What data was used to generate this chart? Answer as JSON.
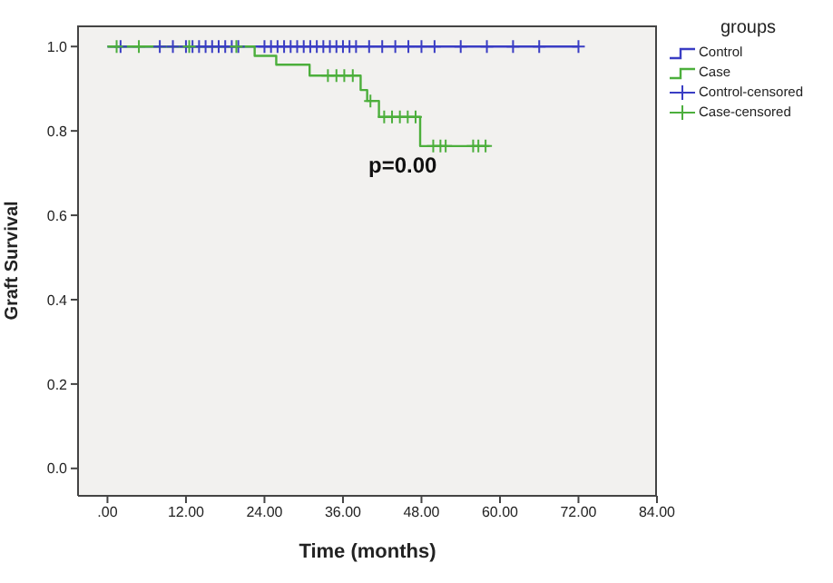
{
  "chart_data": {
    "type": "step",
    "xlabel": "Time (months)",
    "ylabel": "Graft Survival",
    "legend_title": "groups",
    "xlim": [
      -4.5,
      84
    ],
    "ylim": [
      -0.065,
      1.05
    ],
    "xticks": [
      {
        "value": 0,
        "label": ".00"
      },
      {
        "value": 12,
        "label": "12.00"
      },
      {
        "value": 24,
        "label": "24.00"
      },
      {
        "value": 36,
        "label": "36.00"
      },
      {
        "value": 48,
        "label": "48.00"
      },
      {
        "value": 60,
        "label": "60.00"
      },
      {
        "value": 72,
        "label": "72.00"
      },
      {
        "value": 84,
        "label": "84.00"
      }
    ],
    "yticks": [
      {
        "value": 0,
        "label": "0.0"
      },
      {
        "value": 0.2,
        "label": "0.2"
      },
      {
        "value": 0.4,
        "label": "0.4"
      },
      {
        "value": 0.6,
        "label": "0.6"
      },
      {
        "value": 0.8,
        "label": "0.8"
      },
      {
        "value": 1,
        "label": "1.0"
      }
    ],
    "grid": false,
    "legend": "right",
    "annotations": [
      "p=0.00"
    ],
    "series": [
      {
        "name": "Control",
        "color": "#3a3dc4",
        "x": [
          0,
          72
        ],
        "values": [
          1,
          1
        ]
      },
      {
        "name": "Case",
        "color": "#4caf3c",
        "x": [
          0,
          22.5,
          25.8,
          30.9,
          38.7,
          39.7,
          41.5,
          47.8,
          58.4
        ],
        "values": [
          1,
          0.978,
          0.957,
          0.931,
          0.897,
          0.871,
          0.833,
          0.764,
          0.764
        ]
      },
      {
        "name": "Control-censored",
        "type": "scatter",
        "marker": "cross",
        "color": "#3a3dc4",
        "x": [
          2,
          8,
          10,
          12,
          13,
          14,
          15,
          16,
          17,
          18,
          19,
          20,
          24,
          25,
          26,
          27,
          28,
          29,
          30,
          31,
          32,
          33,
          34,
          35,
          36,
          37,
          38,
          40,
          42,
          44,
          46,
          48,
          50,
          54,
          58,
          62,
          66,
          72
        ],
        "values": [
          1,
          1,
          1,
          1,
          1,
          1,
          1,
          1,
          1,
          1,
          1,
          1,
          1,
          1,
          1,
          1,
          1,
          1,
          1,
          1,
          1,
          1,
          1,
          1,
          1,
          1,
          1,
          1,
          1,
          1,
          1,
          1,
          1,
          1,
          1,
          1,
          1,
          1
        ]
      },
      {
        "name": "Case-censored",
        "type": "scatter",
        "marker": "cross",
        "color": "#4caf3c",
        "x": [
          1.4,
          4.8,
          12.5,
          19.7,
          33.7,
          35,
          36.2,
          37.5,
          40.2,
          42.3,
          43.5,
          44.7,
          45.9,
          47.1,
          49.8,
          50.9,
          51.7,
          55.9,
          56.7,
          57.8
        ],
        "values": [
          1,
          1,
          1,
          1,
          0.931,
          0.931,
          0.931,
          0.931,
          0.871,
          0.833,
          0.833,
          0.833,
          0.833,
          0.833,
          0.764,
          0.764,
          0.764,
          0.764,
          0.764,
          0.764
        ]
      }
    ]
  }
}
